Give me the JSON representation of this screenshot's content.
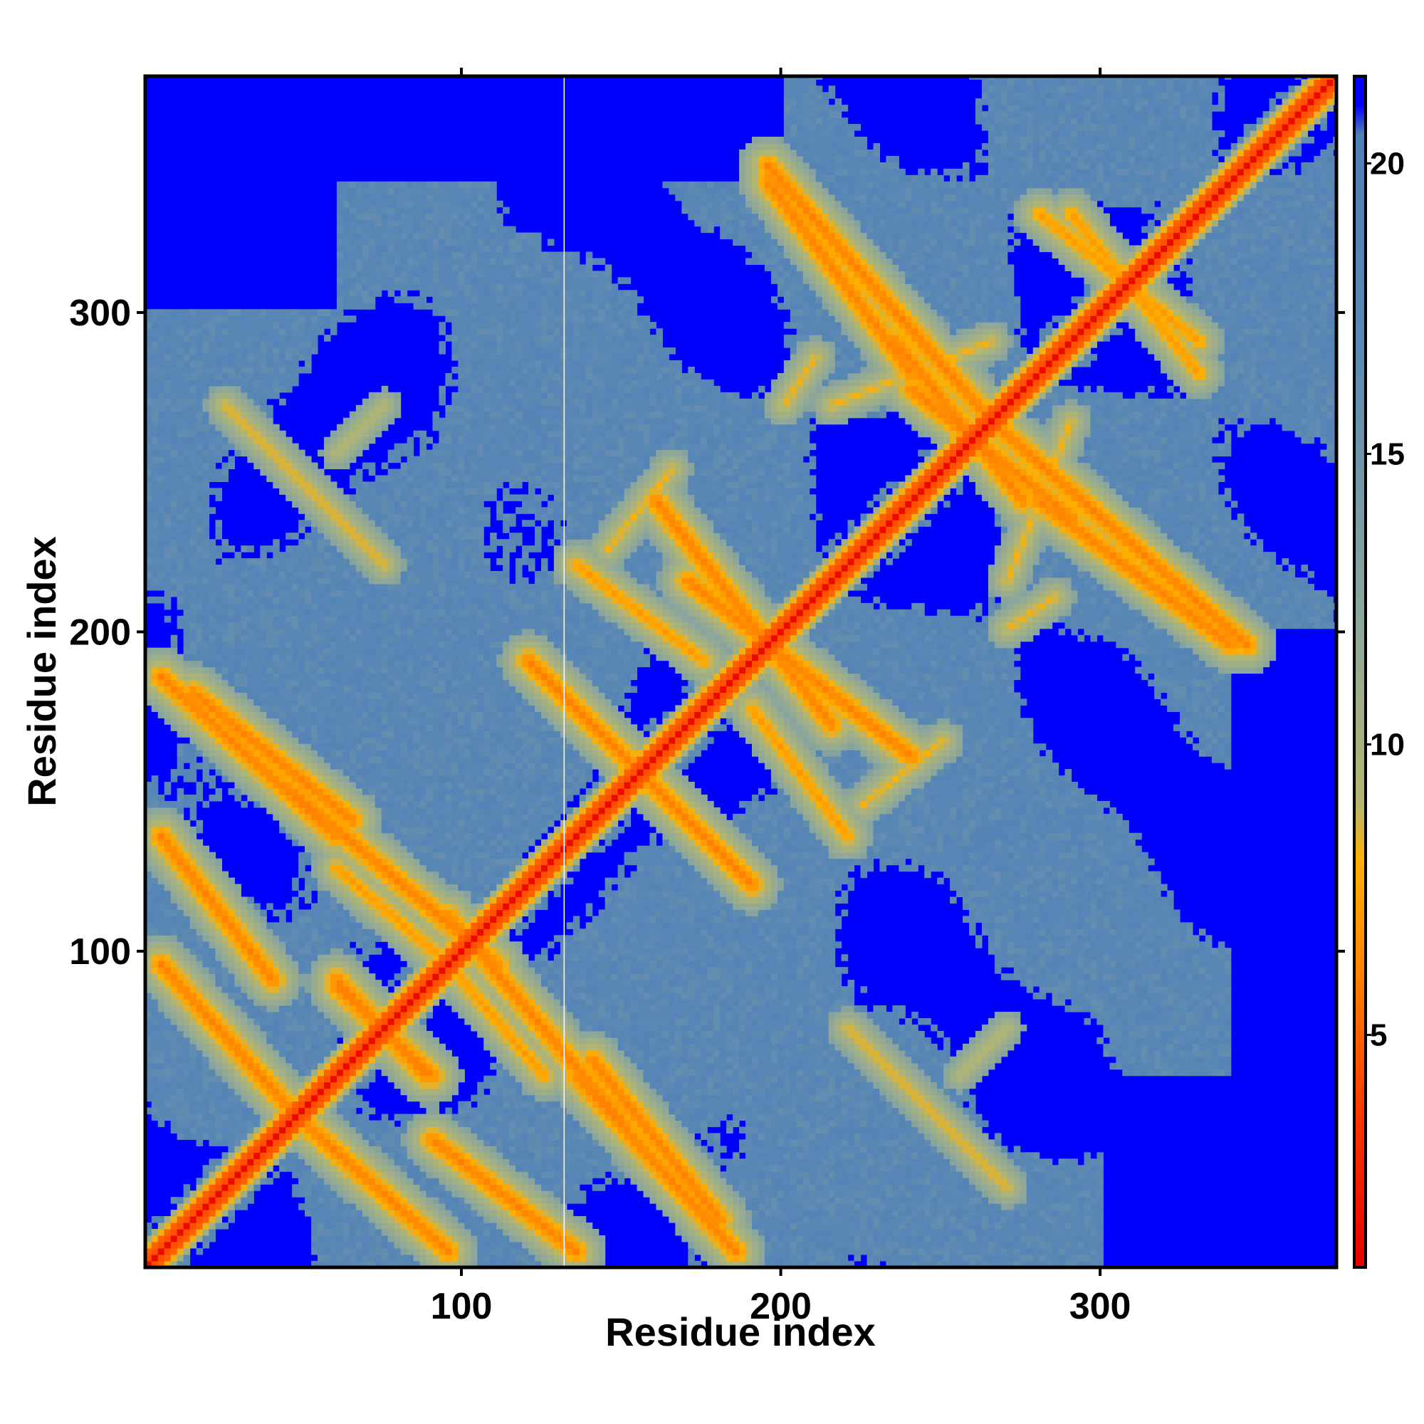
{
  "chart_data": {
    "type": "heatmap",
    "title": "",
    "xlabel": "Residue index",
    "ylabel": "Residue index",
    "xlim": [
      1,
      374
    ],
    "ylim": [
      1,
      374
    ],
    "x_ticks": [
      100,
      200,
      300
    ],
    "y_ticks": [
      100,
      200,
      300
    ],
    "grid": false,
    "legend": "colorbar-right",
    "colorbar": {
      "range": [
        1,
        21.5
      ],
      "ticks": [
        5,
        10,
        15,
        20
      ],
      "stops": [
        {
          "value": 1,
          "color": "#e60000"
        },
        {
          "value": 3.5,
          "color": "#ff3300"
        },
        {
          "value": 6,
          "color": "#ff8000"
        },
        {
          "value": 8,
          "color": "#ffb000"
        },
        {
          "value": 9,
          "color": "#b4b670"
        },
        {
          "value": 12,
          "color": "#8fa89a"
        },
        {
          "value": 17,
          "color": "#5a88b4"
        },
        {
          "value": 20.5,
          "color": "#5080b8"
        },
        {
          "value": 21,
          "color": "#0000ff"
        },
        {
          "value": 21.5,
          "color": "#0000ff"
        }
      ]
    },
    "cell_size": 2,
    "diagonal_value": 3.8,
    "background_value": 21.5,
    "gap_column": 132,
    "contact_bands": [
      {
        "kind": "anti",
        "i0": 5,
        "j0": 95,
        "i1": 45,
        "j1": 50,
        "min": 6
      },
      {
        "kind": "anti",
        "i0": 5,
        "j0": 185,
        "i1": 60,
        "j1": 135,
        "min": 6
      },
      {
        "kind": "anti",
        "i0": 45,
        "j0": 150,
        "i1": 110,
        "j1": 95,
        "min": 6
      },
      {
        "kind": "anti",
        "i0": 60,
        "j0": 90,
        "i1": 88,
        "j1": 60,
        "min": 6
      },
      {
        "kind": "anti",
        "i0": 90,
        "j0": 40,
        "i1": 135,
        "j1": 5,
        "min": 6
      },
      {
        "kind": "anti",
        "i0": 140,
        "j0": 65,
        "i1": 180,
        "j1": 15,
        "min": 6
      },
      {
        "kind": "anti",
        "i0": 120,
        "j0": 190,
        "i1": 185,
        "j1": 125,
        "min": 6
      },
      {
        "kind": "anti",
        "i0": 170,
        "j0": 215,
        "i1": 240,
        "j1": 160,
        "min": 6
      },
      {
        "kind": "anti",
        "i0": 195,
        "j0": 345,
        "i1": 265,
        "j1": 265,
        "min": 6
      },
      {
        "kind": "anti",
        "i0": 235,
        "j0": 290,
        "i1": 275,
        "j1": 240,
        "min": 6
      },
      {
        "kind": "anti",
        "i0": 280,
        "j0": 240,
        "i1": 340,
        "j1": 195,
        "min": 6
      },
      {
        "kind": "anti",
        "i0": 290,
        "j0": 330,
        "i1": 330,
        "j1": 280,
        "min": 7
      },
      {
        "kind": "anti",
        "i0": 25,
        "j0": 270,
        "i1": 75,
        "j1": 220,
        "min": 8
      },
      {
        "kind": "par",
        "i0": 95,
        "j0": 95,
        "i1": 125,
        "j1": 60,
        "min": 7
      },
      {
        "kind": "par",
        "i0": 135,
        "j0": 220,
        "i1": 175,
        "j1": 190,
        "min": 7
      },
      {
        "kind": "par",
        "i0": 215,
        "j0": 270,
        "i1": 265,
        "j1": 290,
        "min": 8
      },
      {
        "kind": "par",
        "i0": 255,
        "j0": 60,
        "i1": 270,
        "j1": 75,
        "min": 9
      },
      {
        "kind": "par",
        "i0": 225,
        "j0": 145,
        "i1": 250,
        "j1": 165,
        "min": 8
      },
      {
        "kind": "par",
        "i0": 270,
        "j0": 200,
        "i1": 285,
        "j1": 210,
        "min": 8
      }
    ]
  }
}
